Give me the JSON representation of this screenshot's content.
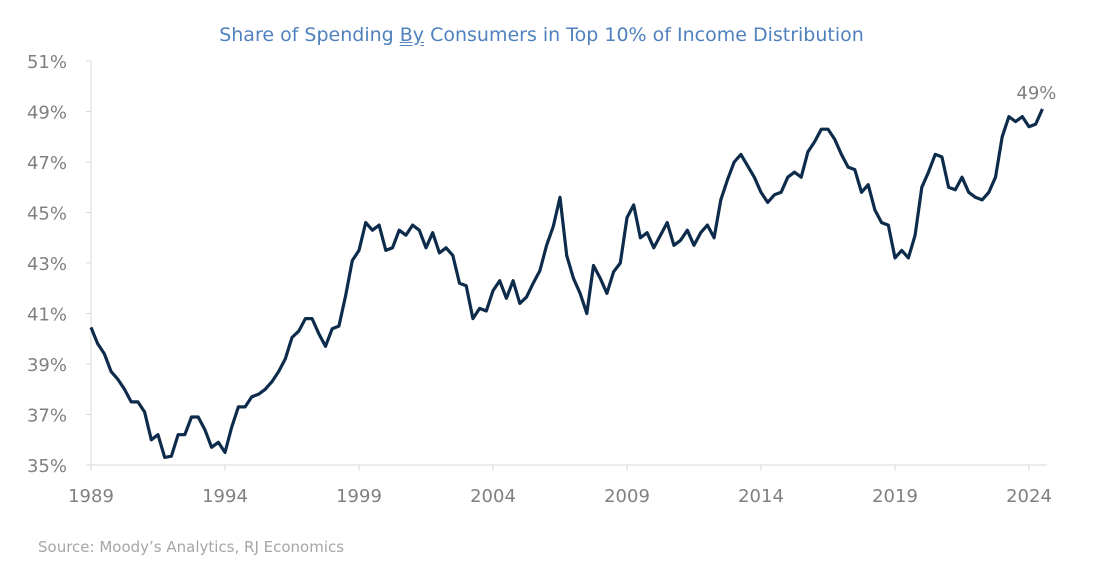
{
  "chart_data": {
    "type": "line",
    "title_parts": [
      "Share of Spending ",
      "By",
      " Consumers in Top 10% of Income Distribution"
    ],
    "title": "Share of Spending By Consumers in Top 10% of Income Distribution",
    "source": "Source: Moody’s Analytics, RJ Economics",
    "xlabel": "",
    "ylabel": "",
    "x_start": 1989,
    "frequency": "quarterly",
    "xlim": [
      1989,
      2024.5
    ],
    "ylim": [
      35,
      51
    ],
    "x_ticks": [
      "1989",
      "1994",
      "1999",
      "2004",
      "2009",
      "2014",
      "2019",
      "2024"
    ],
    "y_ticks": [
      "35%",
      "37%",
      "39%",
      "41%",
      "43%",
      "45%",
      "47%",
      "49%",
      "51%"
    ],
    "grid": false,
    "line_color": "#0d2b4a",
    "annotation": "49%",
    "values": [
      40.45,
      39.8,
      39.4,
      38.7,
      38.4,
      38.0,
      37.5,
      37.5,
      37.1,
      36.0,
      36.2,
      35.3,
      35.35,
      36.2,
      36.2,
      36.9,
      36.9,
      36.4,
      35.7,
      35.9,
      35.5,
      36.5,
      37.3,
      37.3,
      37.7,
      37.8,
      38.0,
      38.3,
      38.7,
      39.2,
      40.05,
      40.3,
      40.8,
      40.8,
      40.2,
      39.7,
      40.4,
      40.5,
      41.7,
      43.1,
      43.5,
      44.6,
      44.3,
      44.5,
      43.5,
      43.6,
      44.3,
      44.1,
      44.5,
      44.3,
      43.6,
      44.2,
      43.4,
      43.6,
      43.3,
      42.2,
      42.1,
      40.8,
      41.2,
      41.1,
      41.9,
      42.3,
      41.6,
      42.3,
      41.4,
      41.65,
      42.2,
      42.7,
      43.7,
      44.45,
      45.6,
      43.3,
      42.4,
      41.8,
      41.0,
      42.9,
      42.4,
      41.8,
      42.65,
      43.0,
      44.8,
      45.3,
      44.0,
      44.2,
      43.6,
      44.1,
      44.6,
      43.7,
      43.9,
      44.3,
      43.7,
      44.2,
      44.5,
      44.0,
      45.5,
      46.3,
      47.0,
      47.3,
      46.85,
      46.4,
      45.8,
      45.4,
      45.7,
      45.8,
      46.4,
      46.6,
      46.4,
      47.4,
      47.8,
      48.3,
      48.3,
      47.9,
      47.3,
      46.8,
      46.7,
      45.8,
      46.1,
      45.1,
      44.6,
      44.5,
      43.2,
      43.5,
      43.2,
      44.1,
      46.0,
      46.6,
      47.3,
      47.2,
      46.0,
      45.9,
      46.4,
      45.8,
      45.6,
      45.5,
      45.8,
      46.4,
      48.0,
      48.8,
      48.6,
      48.8,
      48.4,
      48.5,
      49.1
    ]
  }
}
